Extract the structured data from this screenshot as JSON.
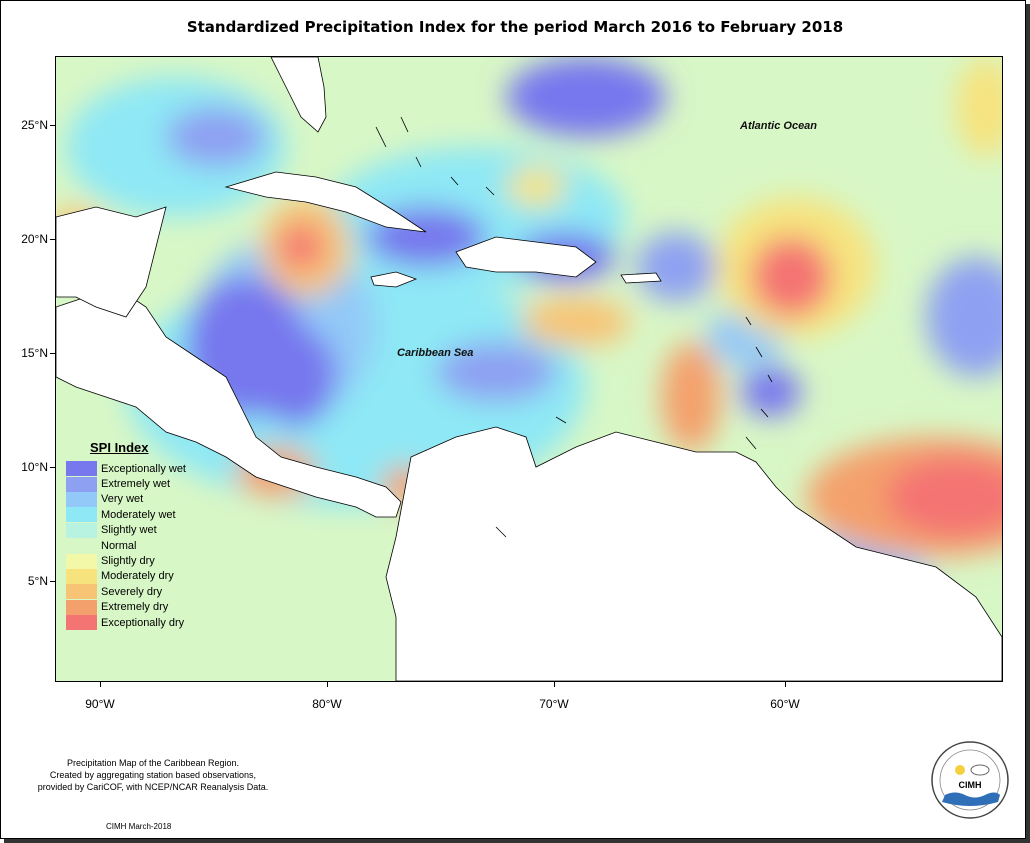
{
  "title": "Standardized Precipitation Index for the period March 2016 to February 2018",
  "map": {
    "labels": {
      "atlantic": "Atlantic Ocean",
      "caribbean": "Caribbean Sea"
    },
    "lat_ticks": [
      "25°N",
      "20°N",
      "15°N",
      "10°N",
      "5°N"
    ],
    "lon_ticks": [
      "90°W",
      "80°W",
      "70°W",
      "60°W"
    ],
    "colors": {
      "normal": "#d8f7c6",
      "land": "#ffffff"
    }
  },
  "legend": {
    "title": "SPI Index",
    "items": [
      {
        "label": "Exceptionally wet",
        "color": "#7777ee"
      },
      {
        "label": "Extremely wet",
        "color": "#8ea0f2"
      },
      {
        "label": "Very wet",
        "color": "#93c9f8"
      },
      {
        "label": "Moderately wet",
        "color": "#8ee8f5"
      },
      {
        "label": "Slightly wet",
        "color": "#b8f3e2"
      },
      {
        "label": "Normal",
        "color": "#d8f7c6"
      },
      {
        "label": "Slightly dry",
        "color": "#f3f7a8"
      },
      {
        "label": "Moderately dry",
        "color": "#f7e37e"
      },
      {
        "label": "Severely dry",
        "color": "#f7c476"
      },
      {
        "label": "Extremely dry",
        "color": "#f4a06c"
      },
      {
        "label": "Exceptionally dry",
        "color": "#f47373"
      }
    ]
  },
  "footer": {
    "line1": "Precipitation Map of the Caribbean Region.",
    "line2": "Created by aggregating station based observations,",
    "line3": "provided by CariCOF, with NCEP/NCAR Reanalysis Data.",
    "credit": "CIMH March-2018"
  },
  "logo": {
    "text": "CIMH"
  }
}
